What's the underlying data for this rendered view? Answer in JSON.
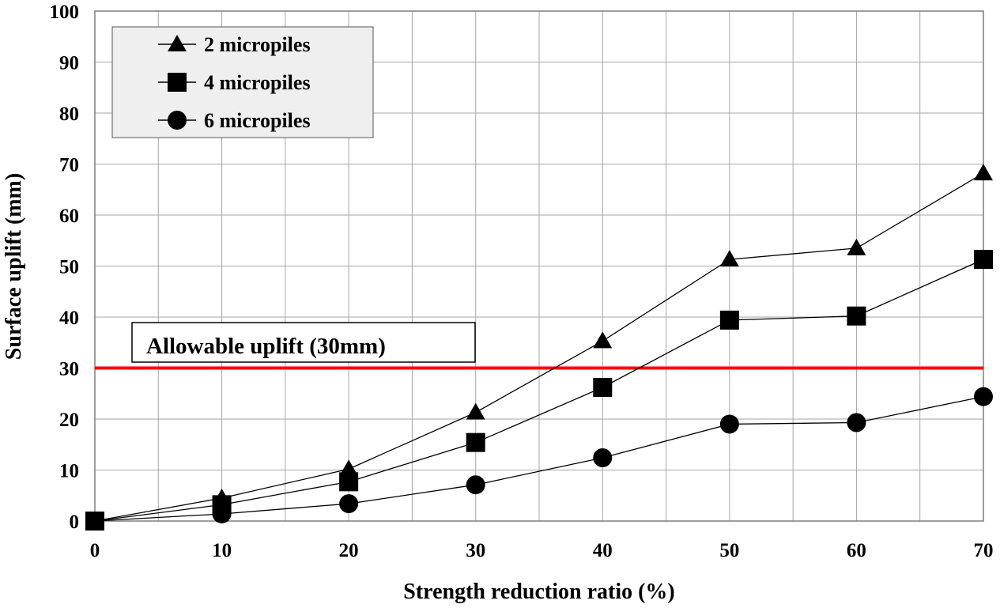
{
  "chart_data": {
    "type": "line",
    "title": "",
    "xlabel": "Strength reduction ratio (%)",
    "ylabel": "Surface uplift (mm)",
    "x": [
      0,
      10,
      20,
      30,
      40,
      50,
      60,
      70
    ],
    "xlim": [
      0,
      70
    ],
    "ylim": [
      0,
      100
    ],
    "xticks": [
      0,
      10,
      20,
      30,
      40,
      50,
      60,
      70
    ],
    "yticks": [
      0,
      10,
      20,
      30,
      40,
      50,
      60,
      70,
      80,
      90,
      100
    ],
    "grid": true,
    "legend_position": "top-left",
    "series": [
      {
        "name": "2 micropiles",
        "marker": "triangle",
        "values": [
          0,
          4.5,
          10.2,
          21.3,
          35.3,
          51.3,
          53.5,
          68.2
        ]
      },
      {
        "name": "4 micropiles",
        "marker": "square",
        "values": [
          0,
          3.2,
          7.7,
          15.4,
          26.2,
          39.4,
          40.2,
          51.3
        ]
      },
      {
        "name": "6 micropiles",
        "marker": "circle",
        "values": [
          0,
          1.4,
          3.4,
          7.1,
          12.4,
          19.0,
          19.3,
          24.4
        ]
      }
    ],
    "reference_line": {
      "value": 30,
      "label": "Allowable uplift (30mm)",
      "color": "#ff0000"
    },
    "colors": {
      "series": "#000000",
      "grid": "#a6a6a6",
      "legend_bg": "#efefef"
    }
  }
}
